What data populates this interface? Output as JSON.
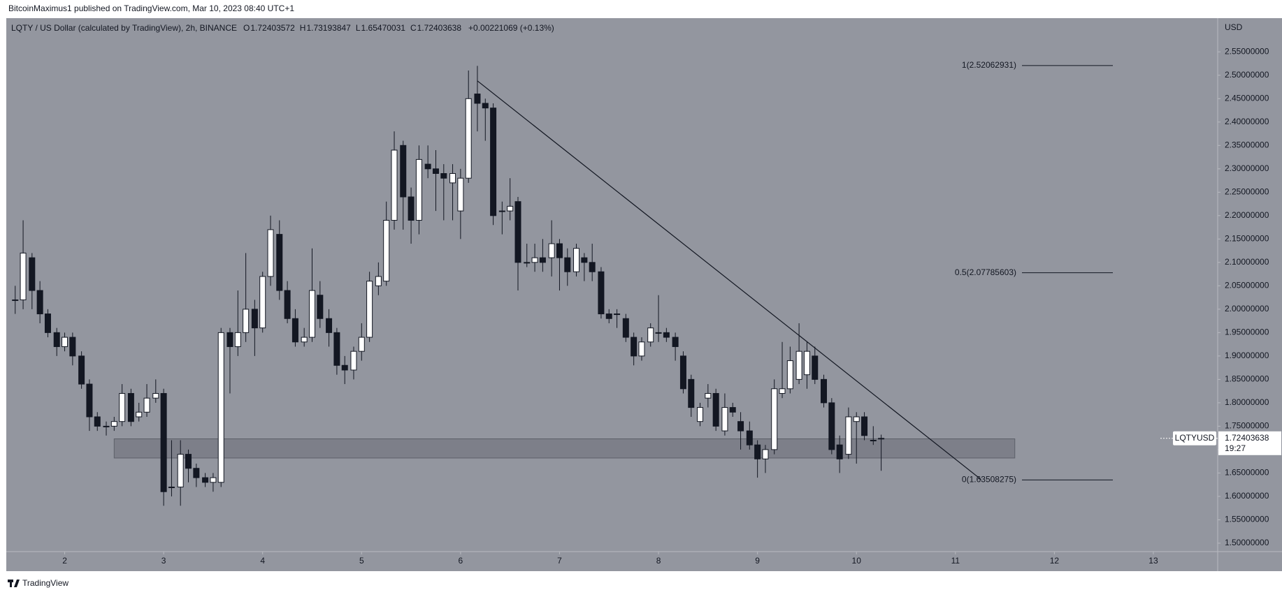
{
  "header": "BitcoinMaximus1 published on TradingView.com, Mar 10, 2023 08:40 UTC+1",
  "footer": "TradingView",
  "chart_data": {
    "type": "candlestick",
    "legend": {
      "symbol": "LQTY / US Dollar (calculated by TradingView), 2h, BINANCE",
      "ohlc": [
        {
          "key": "O",
          "value": "1.72403572"
        },
        {
          "key": "H",
          "value": "1.73193847"
        },
        {
          "key": "L",
          "value": "1.65470031"
        },
        {
          "key": "C",
          "value": "1.72403638"
        }
      ],
      "change": "+0.00221069 (+0.13%)"
    },
    "currency": "USD",
    "xlim": [
      1.41,
      13.65
    ],
    "xticks": [
      2,
      3,
      4,
      5,
      6,
      7,
      8,
      9,
      10,
      11,
      12,
      13
    ],
    "ylim": [
      1.482,
      2.622
    ],
    "yticks": [
      {
        "value": 1.5,
        "label": "1.50000000"
      },
      {
        "value": 1.55,
        "label": "1.55000000"
      },
      {
        "value": 1.6,
        "label": "1.60000000"
      },
      {
        "value": 1.65,
        "label": "1.65000000"
      },
      {
        "value": 1.7,
        "label": "1.70000000"
      },
      {
        "value": 1.75,
        "label": "1.75000000"
      },
      {
        "value": 1.8,
        "label": "1.80000000"
      },
      {
        "value": 1.85,
        "label": "1.85000000"
      },
      {
        "value": 1.9,
        "label": "1.90000000"
      },
      {
        "value": 1.95,
        "label": "1.95000000"
      },
      {
        "value": 2.0,
        "label": "2.00000000"
      },
      {
        "value": 2.05,
        "label": "2.05000000"
      },
      {
        "value": 2.1,
        "label": "2.10000000"
      },
      {
        "value": 2.15,
        "label": "2.15000000"
      },
      {
        "value": 2.2,
        "label": "2.20000000"
      },
      {
        "value": 2.25,
        "label": "2.25000000"
      },
      {
        "value": 2.3,
        "label": "2.30000000"
      },
      {
        "value": 2.35,
        "label": "2.35000000"
      },
      {
        "value": 2.4,
        "label": "2.40000000"
      },
      {
        "value": 2.45,
        "label": "2.45000000"
      },
      {
        "value": 2.5,
        "label": "2.50000000"
      },
      {
        "value": 2.55,
        "label": "2.55000000"
      }
    ],
    "up_color": "#ffffff",
    "down_color": "#131722",
    "series": {
      "x": [
        1.5,
        1.58,
        1.67,
        1.75,
        1.83,
        1.92,
        2,
        2.08,
        2.17,
        2.25,
        2.33,
        2.42,
        2.5,
        2.58,
        2.67,
        2.75,
        2.83,
        2.92,
        3,
        3.08,
        3.17,
        3.25,
        3.33,
        3.42,
        3.5,
        3.58,
        3.67,
        3.75,
        3.83,
        3.92,
        4,
        4.08,
        4.17,
        4.25,
        4.33,
        4.42,
        4.5,
        4.58,
        4.67,
        4.75,
        4.83,
        4.92,
        5,
        5.08,
        5.17,
        5.25,
        5.33,
        5.42,
        5.5,
        5.58,
        5.67,
        5.75,
        5.83,
        5.92,
        6,
        6.08,
        6.17,
        6.25,
        6.33,
        6.42,
        6.5,
        6.58,
        6.67,
        6.75,
        6.83,
        6.92,
        7,
        7.08,
        7.17,
        7.25,
        7.33,
        7.42,
        7.5,
        7.58,
        7.67,
        7.75,
        7.83,
        7.92,
        8,
        8.08,
        8.17,
        8.25,
        8.33,
        8.42,
        8.5,
        8.58,
        8.67,
        8.75,
        8.83,
        8.92,
        9,
        9.08,
        9.17,
        9.25,
        9.33,
        9.42,
        9.5,
        9.58,
        9.67,
        9.75,
        9.83,
        9.92,
        10,
        10.08,
        10.17,
        10.25
      ],
      "open": [
        2.02,
        2.02,
        2.11,
        2.04,
        1.99,
        1.95,
        1.92,
        1.94,
        1.9,
        1.84,
        1.77,
        1.75,
        1.75,
        1.76,
        1.82,
        1.77,
        1.78,
        1.81,
        1.82,
        1.62,
        1.62,
        1.69,
        1.66,
        1.64,
        1.63,
        1.63,
        1.95,
        1.92,
        1.95,
        2.0,
        1.96,
        2.07,
        2.16,
        2.04,
        1.98,
        1.93,
        1.94,
        2.03,
        1.98,
        1.95,
        1.88,
        1.87,
        1.91,
        1.94,
        2.05,
        2.06,
        2.19,
        2.35,
        2.24,
        2.19,
        2.31,
        2.3,
        2.29,
        2.27,
        2.21,
        2.28,
        2.46,
        2.44,
        2.43,
        2.21,
        2.21,
        2.23,
        2.1,
        2.1,
        2.11,
        2.11,
        2.14,
        2.11,
        2.08,
        2.11,
        2.1,
        2.08,
        1.99,
        1.99,
        1.98,
        1.94,
        1.9,
        1.93,
        1.95,
        1.95,
        1.94,
        1.9,
        1.85,
        1.76,
        1.81,
        1.82,
        1.74,
        1.79,
        1.76,
        1.74,
        1.71,
        1.68,
        1.7,
        1.82,
        1.83,
        1.85,
        1.86,
        1.9,
        1.85,
        1.8,
        1.71,
        1.69,
        1.76,
        1.77,
        1.72,
        1.72403572
      ],
      "high": [
        2.05,
        2.19,
        2.12,
        2.06,
        2.0,
        1.96,
        1.95,
        1.95,
        1.91,
        1.85,
        1.78,
        1.76,
        1.77,
        1.84,
        1.83,
        1.8,
        1.84,
        1.85,
        1.83,
        1.72,
        1.72,
        1.7,
        1.67,
        1.65,
        1.65,
        1.96,
        1.96,
        2.04,
        2.12,
        2.02,
        2.08,
        2.2,
        2.19,
        2.06,
        2.0,
        1.96,
        2.13,
        2.06,
        2.0,
        1.96,
        1.9,
        1.92,
        1.97,
        2.08,
        2.1,
        2.23,
        2.38,
        2.36,
        2.26,
        2.35,
        2.35,
        2.34,
        2.31,
        2.31,
        2.3,
        2.51,
        2.52,
        2.45,
        2.44,
        2.23,
        2.28,
        2.24,
        2.14,
        2.14,
        2.15,
        2.19,
        2.15,
        2.13,
        2.14,
        2.12,
        2.14,
        2.09,
        2.0,
        2.0,
        1.99,
        1.95,
        1.94,
        1.97,
        2.03,
        1.96,
        1.95,
        1.91,
        1.86,
        1.8,
        1.84,
        1.83,
        1.82,
        1.8,
        1.78,
        1.76,
        1.72,
        1.71,
        1.85,
        1.93,
        1.92,
        1.97,
        1.93,
        1.92,
        1.86,
        1.81,
        1.73,
        1.79,
        1.78,
        1.78,
        1.75,
        1.73193847
      ],
      "low": [
        1.99,
        2.0,
        2.0,
        1.97,
        1.94,
        1.9,
        1.91,
        1.88,
        1.83,
        1.74,
        1.74,
        1.73,
        1.74,
        1.75,
        1.75,
        1.76,
        1.77,
        1.8,
        1.58,
        1.6,
        1.58,
        1.63,
        1.62,
        1.62,
        1.61,
        1.62,
        1.82,
        1.9,
        1.93,
        1.9,
        1.95,
        2.05,
        2.02,
        1.97,
        1.92,
        1.92,
        1.93,
        1.96,
        1.92,
        1.86,
        1.84,
        1.85,
        1.89,
        1.93,
        2.03,
        2.05,
        2.17,
        2.17,
        2.14,
        2.16,
        2.28,
        2.21,
        2.19,
        2.19,
        2.15,
        2.27,
        2.38,
        2.36,
        2.18,
        2.16,
        2.19,
        2.04,
        2.09,
        2.08,
        2.08,
        2.07,
        2.04,
        2.05,
        2.07,
        2.06,
        2.06,
        1.98,
        1.97,
        1.96,
        1.93,
        1.88,
        1.89,
        1.92,
        1.93,
        1.93,
        1.89,
        1.82,
        1.77,
        1.75,
        1.79,
        1.74,
        1.73,
        1.77,
        1.7,
        1.7,
        1.64,
        1.65,
        1.69,
        1.81,
        1.82,
        1.84,
        1.83,
        1.84,
        1.79,
        1.69,
        1.65,
        1.68,
        1.67,
        1.72,
        1.71,
        1.6547
      ],
      "close": [
        2.02,
        2.12,
        2.04,
        1.99,
        1.95,
        1.92,
        1.94,
        1.9,
        1.84,
        1.77,
        1.75,
        1.75,
        1.76,
        1.82,
        1.76,
        1.78,
        1.81,
        1.82,
        1.61,
        1.62,
        1.69,
        1.66,
        1.64,
        1.63,
        1.64,
        1.95,
        1.92,
        1.95,
        2.0,
        1.96,
        2.07,
        2.17,
        2.04,
        1.98,
        1.93,
        1.94,
        2.04,
        1.98,
        1.95,
        1.88,
        1.87,
        1.91,
        1.94,
        2.06,
        2.07,
        2.19,
        2.34,
        2.24,
        2.19,
        2.32,
        2.3,
        2.29,
        2.28,
        2.29,
        2.28,
        2.45,
        2.44,
        2.43,
        2.2,
        2.21,
        2.22,
        2.1,
        2.1,
        2.11,
        2.1,
        2.14,
        2.11,
        2.08,
        2.13,
        2.1,
        2.08,
        1.99,
        1.98,
        1.99,
        1.94,
        1.9,
        1.93,
        1.96,
        1.95,
        1.94,
        1.92,
        1.83,
        1.79,
        1.79,
        1.82,
        1.75,
        1.79,
        1.78,
        1.74,
        1.71,
        1.68,
        1.7,
        1.83,
        1.83,
        1.89,
        1.91,
        1.91,
        1.85,
        1.8,
        1.7,
        1.68,
        1.77,
        1.77,
        1.73,
        1.72,
        1.72403638
      ]
    },
    "fib_levels": [
      {
        "label": "1(2.52062931)",
        "value": 2.52062931
      },
      {
        "label": "0.5(2.07785603)",
        "value": 2.07785603
      },
      {
        "label": "0(1.63508275)",
        "value": 1.63508275
      }
    ],
    "trendline": {
      "start": [
        6.17,
        2.488
      ],
      "end": [
        11.26,
        1.636
      ]
    },
    "support_zone": {
      "x": [
        2.5,
        11.6
      ],
      "y": [
        1.682,
        1.723
      ]
    },
    "last_price": {
      "symbol": "LQTYUSD",
      "label": "1.72403638",
      "value": 1.72403638,
      "countdown": "19:27"
    }
  }
}
